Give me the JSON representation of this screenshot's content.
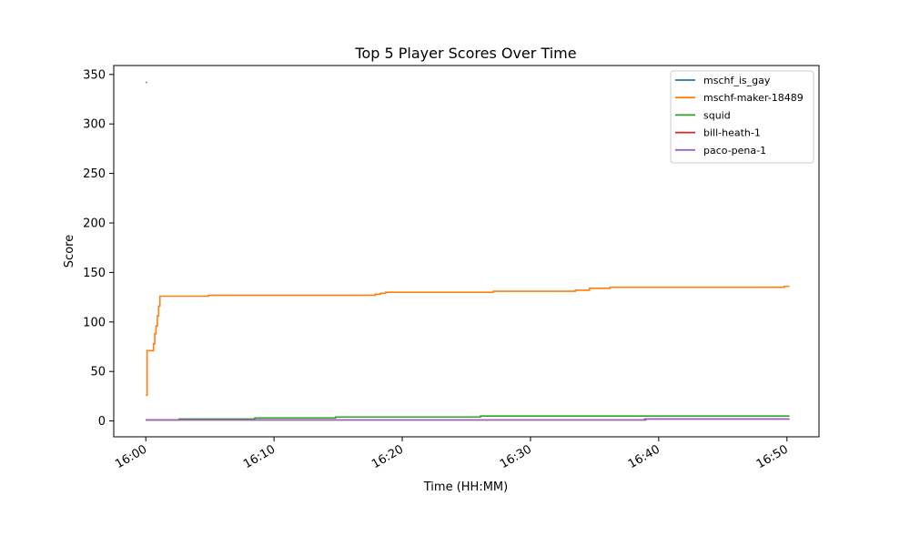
{
  "chart_data": {
    "type": "line",
    "title": "Top 5 Player Scores Over Time",
    "xlabel": "Time (HH:MM)",
    "ylabel": "Score",
    "xlim_minutes": [
      -2.5,
      52.5
    ],
    "ylim": [
      -16,
      359
    ],
    "x_ticks": [
      {
        "value": 0,
        "label": "16:00"
      },
      {
        "value": 10,
        "label": "16:10"
      },
      {
        "value": 20,
        "label": "16:20"
      },
      {
        "value": 30,
        "label": "16:30"
      },
      {
        "value": 40,
        "label": "16:40"
      },
      {
        "value": 50,
        "label": "16:50"
      }
    ],
    "y_ticks": [
      0,
      50,
      100,
      150,
      200,
      250,
      300,
      350
    ],
    "grid": false,
    "legend_position": "top-right",
    "series": [
      {
        "name": "mschf_is_gay",
        "color": "#1f77b4",
        "step": true,
        "points": [
          [
            0.0,
            342
          ],
          [
            0.1,
            342
          ]
        ]
      },
      {
        "name": "mschf-maker-18489",
        "color": "#ff7f0e",
        "step": true,
        "points": [
          [
            0.0,
            26
          ],
          [
            0.1,
            71
          ],
          [
            0.5,
            71
          ],
          [
            0.6,
            78
          ],
          [
            0.7,
            88
          ],
          [
            0.8,
            96
          ],
          [
            0.9,
            106
          ],
          [
            1.0,
            116
          ],
          [
            1.1,
            126
          ],
          [
            4.8,
            126
          ],
          [
            4.9,
            127
          ],
          [
            17.7,
            127
          ],
          [
            17.9,
            128
          ],
          [
            18.3,
            129
          ],
          [
            18.7,
            130
          ],
          [
            26.9,
            130
          ],
          [
            27.1,
            131
          ],
          [
            33.3,
            131
          ],
          [
            33.5,
            132
          ],
          [
            34.4,
            132
          ],
          [
            34.6,
            134
          ],
          [
            36.0,
            134
          ],
          [
            36.2,
            135
          ],
          [
            49.7,
            135
          ],
          [
            49.8,
            136
          ],
          [
            50.2,
            136
          ]
        ]
      },
      {
        "name": "squid",
        "color": "#2ca02c",
        "step": true,
        "points": [
          [
            0.0,
            1
          ],
          [
            2.5,
            1
          ],
          [
            2.6,
            2
          ],
          [
            8.4,
            2
          ],
          [
            8.5,
            3
          ],
          [
            14.7,
            3
          ],
          [
            14.8,
            4
          ],
          [
            26.0,
            4
          ],
          [
            26.1,
            5
          ],
          [
            50.2,
            5
          ]
        ]
      },
      {
        "name": "bill-heath-1",
        "color": "#d62728",
        "step": true,
        "points": [
          [
            0.0,
            1
          ],
          [
            38.8,
            1
          ],
          [
            38.9,
            2
          ],
          [
            50.2,
            2
          ]
        ]
      },
      {
        "name": "paco-pena-1",
        "color": "#9467bd",
        "step": true,
        "points": [
          [
            0.0,
            1
          ],
          [
            38.9,
            1
          ],
          [
            39.0,
            2
          ],
          [
            50.2,
            2
          ]
        ]
      }
    ]
  }
}
